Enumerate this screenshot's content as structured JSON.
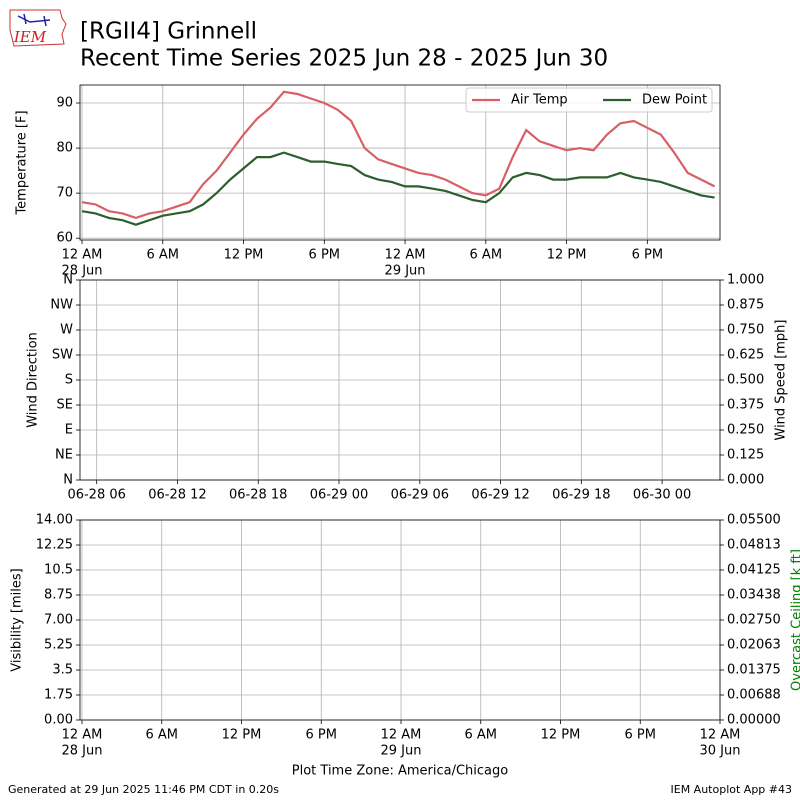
{
  "header": {
    "title": "[RGII4] Grinnell",
    "subtitle": "Recent Time Series 2025 Jun 28 - 2025 Jun 30",
    "logo_text": "IEM"
  },
  "chart_data": [
    {
      "type": "line",
      "ylabel": "Temperature [F]",
      "x": [
        0,
        1,
        2,
        3,
        4,
        5,
        6,
        7,
        8,
        9,
        10,
        11,
        12,
        13,
        14,
        15,
        16,
        17,
        18,
        19,
        20,
        21,
        22,
        23,
        24,
        25,
        26,
        27,
        28,
        29,
        30,
        31,
        32,
        33,
        34,
        35,
        36,
        37,
        38,
        39,
        40,
        41,
        42,
        43,
        44,
        45,
        46,
        47
      ],
      "series": [
        {
          "name": "Air Temp",
          "color": "#d95f67",
          "values": [
            68,
            67.5,
            66,
            65.5,
            64.5,
            65.5,
            66,
            67,
            68,
            72,
            75,
            79,
            83,
            86.5,
            89,
            92.5,
            92,
            91,
            90,
            88.5,
            86,
            80,
            77.5,
            76.5,
            75.5,
            74.5,
            74,
            73,
            71.5,
            70,
            69.5,
            71,
            78,
            84,
            81.5,
            80.5,
            79.5,
            80,
            79.5,
            83,
            85.5,
            86,
            84.5,
            83,
            79,
            74.5,
            73,
            71.5
          ]
        },
        {
          "name": "Dew Point",
          "color": "#2e5e2e",
          "values": [
            66,
            65.5,
            64.5,
            64,
            63,
            64,
            65,
            65.5,
            66,
            67.5,
            70,
            73,
            75.5,
            78,
            78,
            79,
            78,
            77,
            77,
            76.5,
            76,
            74,
            73,
            72.5,
            71.5,
            71.5,
            71,
            70.5,
            69.5,
            68.5,
            68,
            70,
            73.5,
            74.5,
            74,
            73,
            73,
            73.5,
            73.5,
            73.5,
            74.5,
            73.5,
            73,
            72.5,
            71.5,
            70.5,
            69.5,
            69
          ]
        }
      ],
      "xlim": [
        -0.15,
        47.4
      ],
      "ylim": [
        59.6,
        94
      ],
      "yticks": [
        60,
        70,
        80,
        90
      ],
      "xticks": [
        {
          "value": 0,
          "label": "12 AM",
          "sublabel": "28 Jun"
        },
        {
          "value": 6,
          "label": "6 AM"
        },
        {
          "value": 12,
          "label": "12 PM"
        },
        {
          "value": 18,
          "label": "6 PM"
        },
        {
          "value": 24,
          "label": "12 AM",
          "sublabel": "29 Jun"
        },
        {
          "value": 30,
          "label": "6 AM"
        },
        {
          "value": 36,
          "label": "12 PM"
        },
        {
          "value": 42,
          "label": "6 PM"
        }
      ],
      "grid": true,
      "legend": "upper right"
    },
    {
      "type": "line",
      "ylabel": "Wind Direction",
      "y2label": "Wind Speed [mph]",
      "xlim": [
        4.76,
        52.3
      ],
      "ylim": [
        0,
        360
      ],
      "yticks": [
        {
          "value": 0,
          "label": "N"
        },
        {
          "value": 45,
          "label": "NE"
        },
        {
          "value": 90,
          "label": "E"
        },
        {
          "value": 135,
          "label": "SE"
        },
        {
          "value": 180,
          "label": "S"
        },
        {
          "value": 225,
          "label": "SW"
        },
        {
          "value": 270,
          "label": "W"
        },
        {
          "value": 315,
          "label": "NW"
        },
        {
          "value": 360,
          "label": "N"
        }
      ],
      "y2lim": [
        0,
        1
      ],
      "y2ticks": [
        {
          "value": 0,
          "label": "0.000"
        },
        {
          "value": 0.125,
          "label": "0.125"
        },
        {
          "value": 0.25,
          "label": "0.250"
        },
        {
          "value": 0.375,
          "label": "0.375"
        },
        {
          "value": 0.5,
          "label": "0.500"
        },
        {
          "value": 0.625,
          "label": "0.625"
        },
        {
          "value": 0.75,
          "label": "0.750"
        },
        {
          "value": 0.875,
          "label": "0.875"
        },
        {
          "value": 1,
          "label": "1.000"
        }
      ],
      "xticks": [
        {
          "value": 6,
          "label": "06-28 06"
        },
        {
          "value": 12,
          "label": "06-28 12"
        },
        {
          "value": 18,
          "label": "06-28 18"
        },
        {
          "value": 24,
          "label": "06-29 00"
        },
        {
          "value": 30,
          "label": "06-29 06"
        },
        {
          "value": 36,
          "label": "06-29 12"
        },
        {
          "value": 42,
          "label": "06-29 18"
        },
        {
          "value": 48,
          "label": "06-30 00"
        }
      ],
      "grid": true
    },
    {
      "type": "line",
      "ylabel": "Visibility [miles]",
      "y2label": "Overcast Ceiling [k ft]",
      "y2label_color": "#008000",
      "xlabel": "Plot Time Zone: America/Chicago",
      "xlim": [
        -0.15,
        48
      ],
      "ylim": [
        0,
        14
      ],
      "yticks": [
        {
          "value": 0,
          "label": "0.00"
        },
        1.75,
        3.5,
        5.25,
        {
          "value": 7,
          "label": "7.00"
        },
        8.75,
        10.5,
        12.25,
        {
          "value": 14,
          "label": "14.00"
        }
      ],
      "y2lim": [
        0,
        0.055
      ],
      "y2ticks": [
        {
          "value": 0,
          "label": "0.00000"
        },
        {
          "value": 0.006875,
          "label": "0.00688"
        },
        {
          "value": 0.01375,
          "label": "0.01375"
        },
        {
          "value": 0.020625,
          "label": "0.02063"
        },
        {
          "value": 0.0275,
          "label": "0.02750"
        },
        {
          "value": 0.034375,
          "label": "0.03438"
        },
        {
          "value": 0.04125,
          "label": "0.04125"
        },
        {
          "value": 0.048125,
          "label": "0.04813"
        },
        {
          "value": 0.055,
          "label": "0.05500"
        }
      ],
      "xticks": [
        {
          "value": 0,
          "label": "12 AM",
          "sublabel": "28 Jun"
        },
        {
          "value": 6,
          "label": "6 AM"
        },
        {
          "value": 12,
          "label": "12 PM"
        },
        {
          "value": 18,
          "label": "6 PM"
        },
        {
          "value": 24,
          "label": "12 AM",
          "sublabel": "29 Jun"
        },
        {
          "value": 30,
          "label": "6 AM"
        },
        {
          "value": 36,
          "label": "12 PM"
        },
        {
          "value": 42,
          "label": "6 PM"
        },
        {
          "value": 48,
          "label": "12 AM",
          "sublabel": "30 Jun"
        }
      ],
      "grid": true
    }
  ],
  "footer": {
    "left": "Generated at 29 Jun 2025 11:46 PM CDT in 0.20s",
    "right": "IEM Autoplot App #43"
  }
}
